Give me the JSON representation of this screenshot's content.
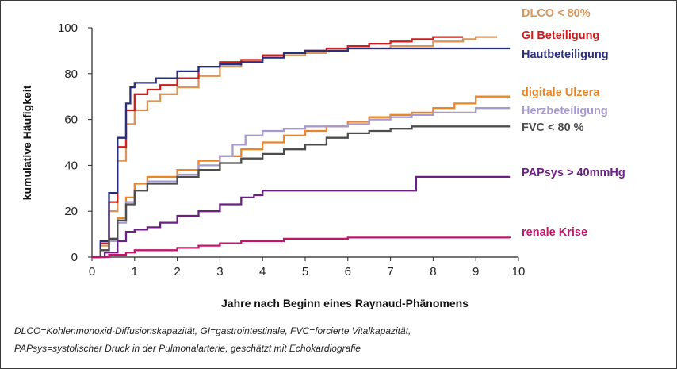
{
  "chart_data": {
    "type": "line",
    "title": "",
    "xlabel": "Jahre nach Beginn eines Raynaud-Phänomens",
    "ylabel": "kumulative Häufigkeit",
    "xlim": [
      0,
      10
    ],
    "ylim": [
      0,
      100
    ],
    "x_ticks": [
      "0",
      "1",
      "2",
      "3",
      "4",
      "5",
      "6",
      "7",
      "8",
      "9",
      "10"
    ],
    "y_ticks": [
      "0",
      "20",
      "40",
      "60",
      "80",
      "100"
    ],
    "grid": false,
    "legend": "right, labels at line ends",
    "series": [
      {
        "name": "DLCO < 80%",
        "color": "#d9955a",
        "points": [
          [
            0,
            0
          ],
          [
            0.2,
            5
          ],
          [
            0.4,
            20
          ],
          [
            0.6,
            42
          ],
          [
            0.8,
            58
          ],
          [
            1.0,
            64
          ],
          [
            1.3,
            68
          ],
          [
            1.6,
            71
          ],
          [
            2.0,
            74
          ],
          [
            2.5,
            79
          ],
          [
            3.0,
            83
          ],
          [
            3.5,
            86
          ],
          [
            4.0,
            87
          ],
          [
            4.5,
            88
          ],
          [
            5.0,
            89
          ],
          [
            5.5,
            90
          ],
          [
            6.0,
            91
          ],
          [
            7.0,
            92
          ],
          [
            8.0,
            94
          ],
          [
            8.7,
            95
          ],
          [
            9.0,
            96
          ],
          [
            9.5,
            96
          ]
        ]
      },
      {
        "name": "GI Beteiligung",
        "color": "#cc1f1f",
        "points": [
          [
            0,
            0
          ],
          [
            0.2,
            6
          ],
          [
            0.4,
            24
          ],
          [
            0.6,
            48
          ],
          [
            0.8,
            64
          ],
          [
            1.0,
            71
          ],
          [
            1.3,
            73
          ],
          [
            1.6,
            75
          ],
          [
            2.0,
            78
          ],
          [
            2.5,
            83
          ],
          [
            3.0,
            85
          ],
          [
            3.5,
            86
          ],
          [
            4.0,
            88
          ],
          [
            4.5,
            89
          ],
          [
            5.0,
            90
          ],
          [
            5.5,
            91
          ],
          [
            6.0,
            92
          ],
          [
            6.5,
            93
          ],
          [
            7.0,
            94
          ],
          [
            7.5,
            95
          ],
          [
            8.0,
            96
          ],
          [
            8.7,
            96
          ]
        ]
      },
      {
        "name": "Hautbeteiligung",
        "color": "#2a2f7a",
        "points": [
          [
            0,
            0
          ],
          [
            0.2,
            7
          ],
          [
            0.4,
            28
          ],
          [
            0.6,
            52
          ],
          [
            0.8,
            67
          ],
          [
            0.9,
            74
          ],
          [
            1.0,
            76
          ],
          [
            1.5,
            78
          ],
          [
            2.0,
            81
          ],
          [
            2.5,
            83
          ],
          [
            3.0,
            84
          ],
          [
            3.5,
            85
          ],
          [
            4.0,
            87
          ],
          [
            4.5,
            89
          ],
          [
            5.0,
            90
          ],
          [
            5.5,
            90
          ],
          [
            6.0,
            91
          ],
          [
            7.0,
            91
          ],
          [
            8.0,
            91
          ],
          [
            9.0,
            91
          ],
          [
            9.8,
            91
          ]
        ]
      },
      {
        "name": "digitale Ulzera",
        "color": "#e8862a",
        "points": [
          [
            0,
            0
          ],
          [
            0.2,
            3
          ],
          [
            0.4,
            8
          ],
          [
            0.6,
            17
          ],
          [
            0.8,
            26
          ],
          [
            1.0,
            32
          ],
          [
            1.3,
            35
          ],
          [
            2.0,
            38
          ],
          [
            2.5,
            42
          ],
          [
            3.0,
            44
          ],
          [
            3.5,
            47
          ],
          [
            4.0,
            50
          ],
          [
            4.5,
            53
          ],
          [
            5.0,
            55
          ],
          [
            5.5,
            57
          ],
          [
            6.0,
            59
          ],
          [
            6.5,
            61
          ],
          [
            7.0,
            62
          ],
          [
            7.5,
            63
          ],
          [
            8.0,
            65
          ],
          [
            8.5,
            67
          ],
          [
            9.0,
            70
          ],
          [
            9.8,
            70
          ]
        ]
      },
      {
        "name": "Herzbeteiligung",
        "color": "#a79acc",
        "points": [
          [
            0,
            0
          ],
          [
            0.2,
            3
          ],
          [
            0.4,
            7
          ],
          [
            0.6,
            15
          ],
          [
            0.8,
            24
          ],
          [
            1.0,
            29
          ],
          [
            1.3,
            33
          ],
          [
            2.0,
            36
          ],
          [
            2.5,
            40
          ],
          [
            3.0,
            44
          ],
          [
            3.3,
            49
          ],
          [
            3.6,
            53
          ],
          [
            4.0,
            55
          ],
          [
            4.5,
            56
          ],
          [
            5.0,
            57
          ],
          [
            5.5,
            57
          ],
          [
            6.0,
            58
          ],
          [
            6.5,
            60
          ],
          [
            7.0,
            61
          ],
          [
            7.5,
            62
          ],
          [
            8.0,
            63
          ],
          [
            9.0,
            65
          ],
          [
            9.8,
            65
          ]
        ]
      },
      {
        "name": "FVC < 80 %",
        "color": "#4d4d4d",
        "points": [
          [
            0,
            0
          ],
          [
            0.2,
            3
          ],
          [
            0.4,
            8
          ],
          [
            0.6,
            16
          ],
          [
            0.8,
            23
          ],
          [
            1.0,
            29
          ],
          [
            1.3,
            32
          ],
          [
            2.0,
            35
          ],
          [
            2.5,
            38
          ],
          [
            3.0,
            41
          ],
          [
            3.5,
            43
          ],
          [
            4.0,
            45
          ],
          [
            4.5,
            47
          ],
          [
            5.0,
            49
          ],
          [
            5.5,
            52
          ],
          [
            6.0,
            54
          ],
          [
            6.5,
            55
          ],
          [
            7.0,
            56
          ],
          [
            7.5,
            57
          ],
          [
            8.0,
            57
          ],
          [
            9.0,
            57
          ],
          [
            9.8,
            57
          ]
        ]
      },
      {
        "name": "PAPsys > 40mmHg",
        "color": "#6a2181",
        "points": [
          [
            0,
            0
          ],
          [
            0.3,
            2
          ],
          [
            0.6,
            7
          ],
          [
            0.8,
            11
          ],
          [
            1.0,
            12
          ],
          [
            1.3,
            13
          ],
          [
            1.6,
            15
          ],
          [
            2.0,
            18
          ],
          [
            2.5,
            20
          ],
          [
            3.0,
            23
          ],
          [
            3.5,
            26
          ],
          [
            3.8,
            27
          ],
          [
            4.0,
            29
          ],
          [
            5.0,
            29
          ],
          [
            6.0,
            29
          ],
          [
            7.0,
            29
          ],
          [
            7.6,
            29
          ],
          [
            7.6,
            35
          ],
          [
            8.0,
            35
          ],
          [
            9.0,
            35
          ],
          [
            9.8,
            35
          ]
        ]
      },
      {
        "name": "renale Krise",
        "color": "#c2166b",
        "points": [
          [
            0,
            0
          ],
          [
            0.4,
            1
          ],
          [
            0.8,
            2
          ],
          [
            1.0,
            3
          ],
          [
            1.5,
            3
          ],
          [
            2.0,
            4
          ],
          [
            2.5,
            5
          ],
          [
            3.0,
            6
          ],
          [
            3.5,
            7
          ],
          [
            4.0,
            7
          ],
          [
            4.5,
            8
          ],
          [
            5.0,
            8
          ],
          [
            5.5,
            8
          ],
          [
            6.0,
            8.5
          ],
          [
            7.0,
            8.5
          ],
          [
            8.0,
            8.5
          ],
          [
            9.0,
            8.5
          ],
          [
            9.8,
            8.3
          ]
        ]
      }
    ]
  },
  "footnotes": {
    "line1": "DLCO=Kohlenmonoxid-Diffusionskapazität, GI=gastrointestinale, FVC=forcierte Vitalkapazität,",
    "line2": "PAPsys=systolischer Druck in der Pulmonalarterie, geschätzt mit Echokardiografie"
  }
}
